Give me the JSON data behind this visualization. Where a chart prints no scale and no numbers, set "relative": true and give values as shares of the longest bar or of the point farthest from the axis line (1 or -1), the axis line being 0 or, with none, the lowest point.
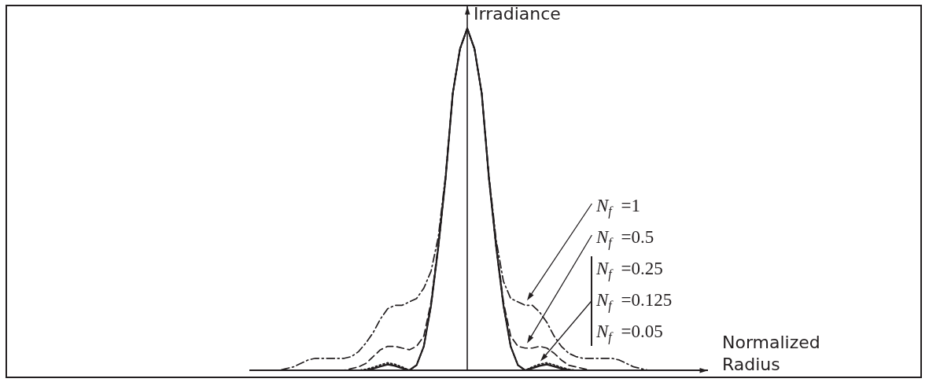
{
  "chart_data": {
    "type": "line",
    "relative": true,
    "xlabel": "Normalized Radius",
    "ylabel": "Irradiance",
    "legend": false,
    "marker": "none",
    "annotations": [
      "N$_{f}$ =1",
      "N$_{f}$ =0.5",
      "N$_{f}$ =0.25",
      "N$_{f}$ =0.125",
      "N$_{f}$ =0.05"
    ],
    "categories": [
      null,
      null,
      null,
      null,
      null,
      null,
      null,
      null,
      null,
      null,
      null,
      null,
      null,
      null,
      null,
      null,
      null,
      null,
      null,
      null,
      null,
      null,
      null,
      null,
      null,
      null,
      null,
      null,
      null,
      null,
      null,
      null,
      null,
      null,
      null,
      null,
      null,
      null,
      null,
      null,
      null,
      null,
      null,
      null,
      null,
      null,
      null,
      null,
      null,
      null,
      null,
      null,
      null,
      null,
      null,
      null,
      null,
      null,
      null,
      null,
      null
    ],
    "series": [
      {
        "color": "#231f20",
        "line_style": "dashdot",
        "values": [
          0,
          0,
          0,
          0,
          0,
          0.005,
          0.01,
          0.02,
          0.03,
          0.035,
          0.035,
          0.035,
          0.035,
          0.035,
          0.04,
          0.055,
          0.08,
          0.11,
          0.15,
          0.18,
          0.19,
          0.19,
          0.2,
          0.21,
          0.24,
          0.29,
          0.39,
          0.57,
          0.81,
          0.94,
          1,
          0.94,
          0.81,
          0.57,
          0.38,
          0.26,
          0.21,
          0.2,
          0.19,
          0.19,
          0.17,
          0.14,
          0.1,
          0.07,
          0.05,
          0.04,
          0.035,
          0.035,
          0.035,
          0.035,
          0.035,
          0.03,
          0.02,
          0.01,
          0.005,
          0,
          0,
          0,
          0,
          0,
          0
        ]
      },
      {
        "color": "#231f20",
        "line_style": "dashed",
        "values": [
          0,
          0,
          0,
          0,
          0,
          0,
          0,
          0,
          0,
          0,
          0,
          0,
          0,
          0,
          0.005,
          0.01,
          0.02,
          0.04,
          0.06,
          0.07,
          0.07,
          0.065,
          0.06,
          0.07,
          0.1,
          0.2,
          0.37,
          0.56,
          0.81,
          0.94,
          1,
          0.94,
          0.81,
          0.56,
          0.37,
          0.2,
          0.1,
          0.07,
          0.065,
          0.065,
          0.07,
          0.065,
          0.05,
          0.03,
          0.015,
          0.01,
          0.005,
          0,
          0,
          0,
          0,
          0,
          0,
          0,
          0,
          0,
          0,
          0,
          0,
          0,
          0
        ]
      },
      {
        "color": "#231f20",
        "line_style": "dotted",
        "values": [
          0,
          0,
          0,
          0,
          0,
          0,
          0,
          0,
          0,
          0,
          0,
          0,
          0,
          0,
          0,
          0,
          0.003,
          0.009,
          0.016,
          0.022,
          0.018,
          0.01,
          0,
          0.015,
          0.07,
          0.19,
          0.36,
          0.56,
          0.81,
          0.94,
          1,
          0.94,
          0.81,
          0.56,
          0.36,
          0.19,
          0.07,
          0.015,
          0,
          0.01,
          0.018,
          0.022,
          0.016,
          0.009,
          0.003,
          0,
          0,
          0,
          0,
          0,
          0,
          0,
          0,
          0,
          0,
          0,
          0,
          0,
          0,
          0,
          0
        ]
      },
      {
        "color": "#231f20",
        "line_style": "dotted",
        "values": [
          0,
          0,
          0,
          0,
          0,
          0,
          0,
          0,
          0,
          0,
          0,
          0,
          0,
          0,
          0,
          0,
          0.002,
          0.007,
          0.013,
          0.019,
          0.015,
          0.008,
          0,
          0.015,
          0.07,
          0.19,
          0.36,
          0.56,
          0.81,
          0.94,
          1,
          0.94,
          0.81,
          0.56,
          0.36,
          0.19,
          0.07,
          0.015,
          0,
          0.008,
          0.015,
          0.019,
          0.013,
          0.007,
          0.002,
          0,
          0,
          0,
          0,
          0,
          0,
          0,
          0,
          0,
          0,
          0,
          0,
          0,
          0,
          0,
          0
        ]
      },
      {
        "color": "#231f20",
        "line_style": "solid",
        "values": [
          0,
          0,
          0,
          0,
          0,
          0,
          0,
          0,
          0,
          0,
          0,
          0,
          0,
          0,
          0,
          0,
          0,
          0.005,
          0.011,
          0.017,
          0.013,
          0.006,
          0,
          0.015,
          0.07,
          0.19,
          0.36,
          0.56,
          0.81,
          0.94,
          1,
          0.94,
          0.81,
          0.56,
          0.36,
          0.19,
          0.07,
          0.015,
          0,
          0.006,
          0.013,
          0.017,
          0.011,
          0.005,
          0,
          0,
          0,
          0,
          0,
          0,
          0,
          0,
          0,
          0,
          0,
          0,
          0,
          0,
          0,
          0,
          0
        ]
      }
    ]
  }
}
